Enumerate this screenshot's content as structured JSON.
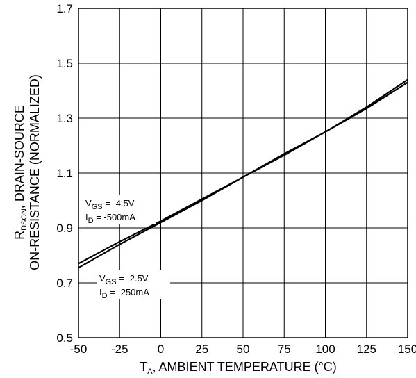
{
  "chart_data": {
    "type": "line",
    "title": "",
    "x_ticks": [
      "-50",
      "-25",
      "0",
      "25",
      "50",
      "75",
      "100",
      "125",
      "150"
    ],
    "y_ticks": [
      "0.5",
      "0.7",
      "0.9",
      "1.1",
      "1.3",
      "1.5",
      "1.7"
    ],
    "xlim": [
      -50,
      150
    ],
    "ylim": [
      0.5,
      1.7
    ],
    "grid": true,
    "xlabel": {
      "main": "T",
      "sub": "A",
      "rest": ", AMBIENT TEMPERATURE (°C)"
    },
    "ylabel": {
      "line1_main": "R",
      "line1_sub": "DSON",
      "line1_rest": ", DRAIN-SOURCE",
      "line2": "ON-RESISTANCE (NORMALIZED)"
    },
    "series": [
      {
        "x": [
          -50,
          -25,
          0,
          25,
          50,
          75,
          100,
          125,
          150
        ],
        "y": [
          0.77,
          0.85,
          0.925,
          1.005,
          1.085,
          1.17,
          1.25,
          1.335,
          1.43
        ]
      },
      {
        "x": [
          -50,
          -25,
          0,
          25,
          50,
          75,
          100,
          125,
          150
        ],
        "y": [
          0.755,
          0.84,
          0.92,
          1.0,
          1.085,
          1.165,
          1.25,
          1.34,
          1.44
        ]
      }
    ],
    "annotations": [
      {
        "v_main": "V",
        "v_sub": "GS",
        "v_rest": " = -4.5V",
        "i_main": "I",
        "i_sub": "D",
        "i_rest": " = -500mA"
      },
      {
        "v_main": "V",
        "v_sub": "GS",
        "v_rest": " = -2.5V",
        "i_main": "I",
        "i_sub": "D",
        "i_rest": " = -250mA"
      }
    ]
  }
}
